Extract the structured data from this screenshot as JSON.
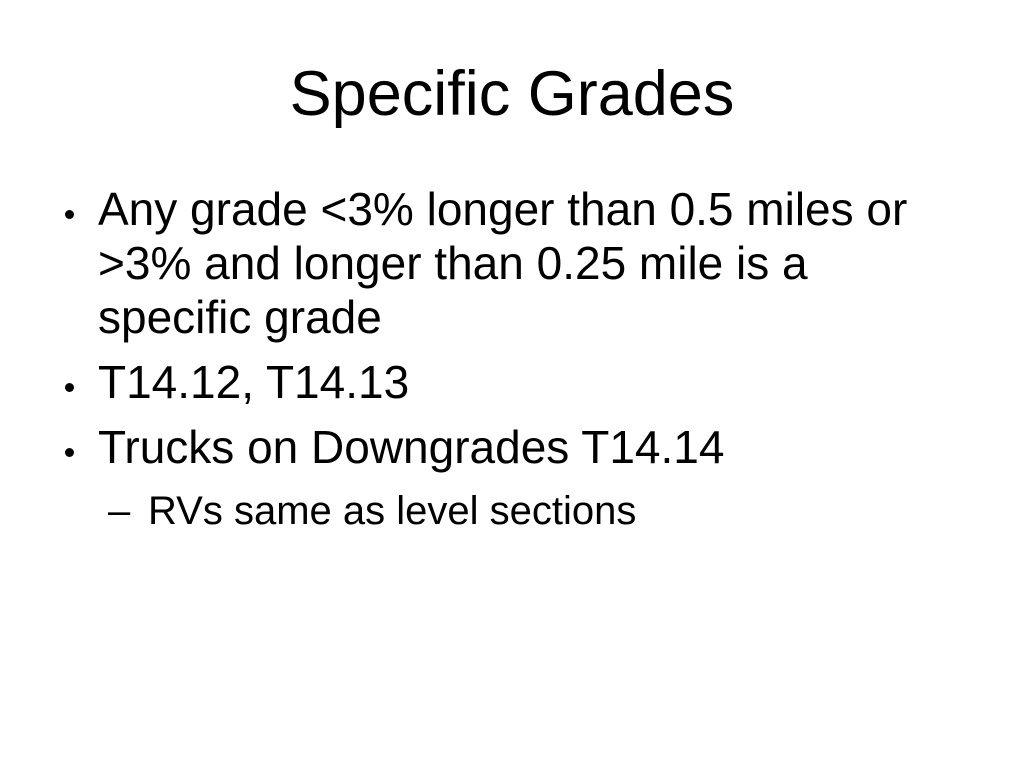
{
  "slide": {
    "title": "Specific Grades",
    "colors": {
      "background": "#ffffff",
      "text": "#000000"
    },
    "bullet_glyphs": {
      "level1": "•",
      "level2": "–"
    },
    "bullets": [
      {
        "level": 1,
        "text": "Any grade <3% longer than 0.5 miles or >3% and longer than 0.25 mile is a specific grade"
      },
      {
        "level": 1,
        "text": "T14.12, T14.13"
      },
      {
        "level": 1,
        "text": "Trucks on Downgrades T14.14"
      },
      {
        "level": 2,
        "text": "RVs same as level sections"
      }
    ]
  }
}
